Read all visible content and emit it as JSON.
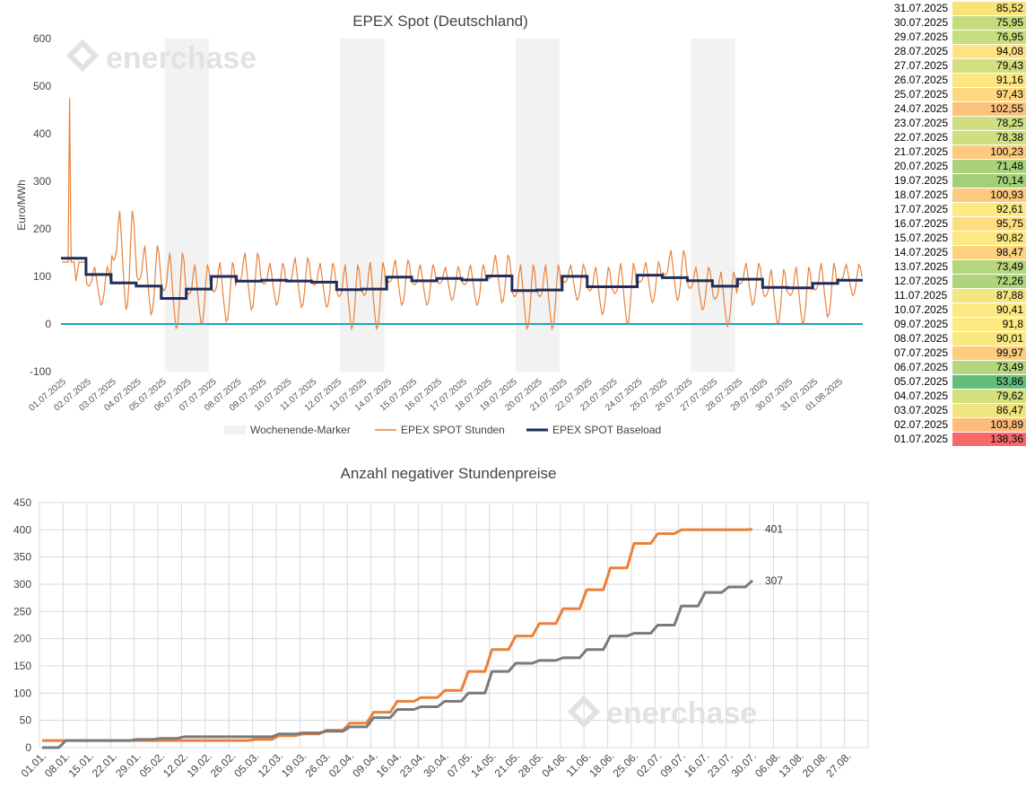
{
  "chart_data": [
    {
      "type": "line",
      "title": "EPEX Spot (Deutschland)",
      "watermark": "enerchase",
      "ylabel": "Euro/MWh",
      "ylim": [
        -100,
        600
      ],
      "yticks": [
        "600",
        "500",
        "400",
        "300",
        "200",
        "100",
        "0",
        "-100"
      ],
      "x_labels": [
        "01.07.2025",
        "02.07.2025",
        "03.07.2025",
        "04.07.2025",
        "05.07.2025",
        "06.07.2025",
        "07.07.2025",
        "08.07.2025",
        "09.07.2025",
        "10.07.2025",
        "11.07.2025",
        "12.07.2025",
        "13.07.2025",
        "14.07.2025",
        "15.07.2025",
        "16.07.2025",
        "17.07.2025",
        "18.07.2025",
        "19.07.2025",
        "20.07.2025",
        "21.07.2025",
        "22.07.2025",
        "23.07.2025",
        "24.07.2025",
        "25.07.2025",
        "26.07.2025",
        "27.07.2025",
        "28.07.2025",
        "29.07.2025",
        "30.07.2025",
        "31.07.2025",
        "01.08.2025"
      ],
      "legend": [
        {
          "name": "Wochenende-Marker",
          "color": "#f2f2f2"
        },
        {
          "name": "EPEX SPOT Stunden",
          "color": "#e8823a"
        },
        {
          "name": "EPEX SPOT Baseload",
          "color": "#1f2d5a"
        }
      ],
      "weekend_spans_days": [
        [
          4,
          6
        ],
        [
          11,
          13
        ],
        [
          18,
          20
        ],
        [
          25,
          27
        ]
      ],
      "baseload_by_day": [
        138.36,
        103.89,
        86.47,
        79.62,
        53.86,
        73.49,
        99.97,
        90.01,
        91.8,
        90.41,
        87.88,
        72.26,
        73.49,
        98.47,
        90.82,
        95.75,
        92.61,
        100.93,
        70.14,
        71.48,
        100.23,
        78.38,
        78.25,
        102.55,
        97.43,
        91.16,
        79.43,
        94.08,
        76.95,
        75.95,
        85.52,
        92.0
      ],
      "hourly_daily_shape": {
        "peaks_by_day": [
          475,
          120,
          238,
          165,
          150,
          125,
          130,
          150,
          128,
          140,
          128,
          125,
          130,
          135,
          125,
          120,
          125,
          145,
          125,
          125,
          125,
          120,
          128,
          130,
          155,
          120,
          110,
          128,
          115,
          120,
          128,
          125
        ],
        "troughs_by_day": [
          90,
          40,
          30,
          20,
          -10,
          0,
          5,
          30,
          40,
          35,
          35,
          -10,
          -10,
          40,
          40,
          50,
          40,
          45,
          -10,
          -10,
          50,
          20,
          0,
          45,
          50,
          30,
          -5,
          40,
          0,
          0,
          15,
          60
        ]
      },
      "zero_line_color": "#1aa7b8"
    },
    {
      "type": "line",
      "title": "Anzahl negativer Stundenpreise",
      "watermark": "enerchase",
      "ylim": [
        0,
        450
      ],
      "yticks": [
        "450",
        "400",
        "350",
        "300",
        "250",
        "200",
        "150",
        "100",
        "50",
        "0"
      ],
      "x_labels": [
        "01.01.",
        "08.01.",
        "15.01.",
        "22.01.",
        "29.01.",
        "05.02.",
        "12.02.",
        "19.02.",
        "26.02.",
        "05.03.",
        "12.03.",
        "19.03.",
        "26.03.",
        "02.04.",
        "09.04.",
        "16.04.",
        "23.04.",
        "30.04.",
        "07.05.",
        "14.05.",
        "21.05.",
        "28.05.",
        "04.06.",
        "11.06.",
        "18.06.",
        "25.06.",
        "02.07.",
        "09.07.",
        "16.07.",
        "23.07.",
        "30.07.",
        "06.08.",
        "13.08.",
        "20.08.",
        "27.08."
      ],
      "series": [
        {
          "color": "#e8823a",
          "end_label": "401",
          "week_values": [
            13,
            13,
            13,
            13,
            13,
            13,
            13,
            13,
            13,
            15,
            22,
            25,
            32,
            45,
            65,
            85,
            92,
            105,
            140,
            180,
            205,
            228,
            255,
            290,
            330,
            375,
            393,
            400,
            400,
            400,
            401
          ]
        },
        {
          "color": "#7a7a7a",
          "end_label": "307",
          "week_values": [
            0,
            13,
            13,
            13,
            15,
            17,
            20,
            20,
            20,
            20,
            25,
            27,
            30,
            38,
            55,
            70,
            75,
            85,
            100,
            140,
            155,
            160,
            165,
            180,
            205,
            210,
            225,
            260,
            285,
            295,
            307
          ]
        }
      ]
    }
  ],
  "price_table": [
    {
      "date": "31.07.2025",
      "value": "85,52",
      "color": "#f7e37a"
    },
    {
      "date": "30.07.2025",
      "value": "75,95",
      "color": "#c4dc7c"
    },
    {
      "date": "29.07.2025",
      "value": "76,95",
      "color": "#c8dd7d"
    },
    {
      "date": "28.07.2025",
      "value": "94,08",
      "color": "#fee380"
    },
    {
      "date": "27.07.2025",
      "value": "79,43",
      "color": "#d3df7e"
    },
    {
      "date": "26.07.2025",
      "value": "91,16",
      "color": "#fde680"
    },
    {
      "date": "25.07.2025",
      "value": "97,43",
      "color": "#fed780"
    },
    {
      "date": "24.07.2025",
      "value": "102,55",
      "color": "#fcc27c"
    },
    {
      "date": "23.07.2025",
      "value": "78,25",
      "color": "#cfde7e"
    },
    {
      "date": "22.07.2025",
      "value": "78,38",
      "color": "#cfde7e"
    },
    {
      "date": "21.07.2025",
      "value": "100,23",
      "color": "#fdcb7e"
    },
    {
      "date": "20.07.2025",
      "value": "71,48",
      "color": "#a9d27a"
    },
    {
      "date": "19.07.2025",
      "value": "70,14",
      "color": "#a2d079"
    },
    {
      "date": "18.07.2025",
      "value": "100,93",
      "color": "#fdc97e"
    },
    {
      "date": "17.07.2025",
      "value": "92,61",
      "color": "#feea81"
    },
    {
      "date": "16.07.2025",
      "value": "95,75",
      "color": "#fedd80"
    },
    {
      "date": "15.07.2025",
      "value": "90,82",
      "color": "#fde981"
    },
    {
      "date": "14.07.2025",
      "value": "98,47",
      "color": "#fed37f"
    },
    {
      "date": "13.07.2025",
      "value": "73,49",
      "color": "#b5d67b"
    },
    {
      "date": "12.07.2025",
      "value": "72,26",
      "color": "#aed47a"
    },
    {
      "date": "11.07.2025",
      "value": "87,88",
      "color": "#f3e57f"
    },
    {
      "date": "10.07.2025",
      "value": "90,41",
      "color": "#fbe981"
    },
    {
      "date": "09.07.2025",
      "value": "91,8",
      "color": "#feea81"
    },
    {
      "date": "08.07.2025",
      "value": "90,01",
      "color": "#fae981"
    },
    {
      "date": "07.07.2025",
      "value": "99,97",
      "color": "#fdcd7e"
    },
    {
      "date": "06.07.2025",
      "value": "73,49",
      "color": "#b5d67b"
    },
    {
      "date": "05.07.2025",
      "value": "53,86",
      "color": "#63be7b"
    },
    {
      "date": "04.07.2025",
      "value": "79,62",
      "color": "#d4df7e"
    },
    {
      "date": "03.07.2025",
      "value": "86,47",
      "color": "#f0e47f"
    },
    {
      "date": "02.07.2025",
      "value": "103,89",
      "color": "#fcbc7b"
    },
    {
      "date": "01.07.2025",
      "value": "138,36",
      "color": "#f8696b"
    }
  ]
}
